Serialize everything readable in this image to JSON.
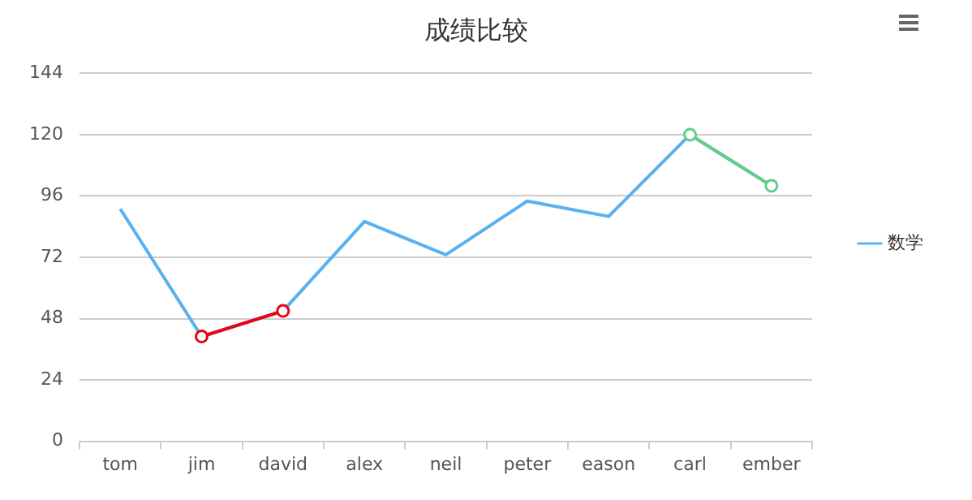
{
  "chart_data": {
    "type": "line",
    "title": "成绩比较",
    "categories": [
      "tom",
      "jim",
      "david",
      "alex",
      "neil",
      "peter",
      "eason",
      "carl",
      "ember"
    ],
    "series": [
      {
        "name": "数学",
        "color": "#5ab1ef",
        "marker": "none",
        "values": [
          91,
          41,
          51,
          86,
          73,
          94,
          88,
          120,
          100
        ]
      },
      {
        "color": "#e8050f",
        "marker": "circle",
        "values": [
          null,
          41,
          51,
          null,
          null,
          null,
          null,
          null,
          null
        ]
      },
      {
        "color": "#66cc88",
        "marker": "circle",
        "values": [
          null,
          null,
          null,
          null,
          null,
          null,
          null,
          120,
          100
        ]
      }
    ],
    "ylim": [
      0,
      144
    ],
    "yticks": [
      0,
      24,
      48,
      72,
      96,
      120,
      144
    ],
    "grid": "y",
    "legend": "right"
  }
}
